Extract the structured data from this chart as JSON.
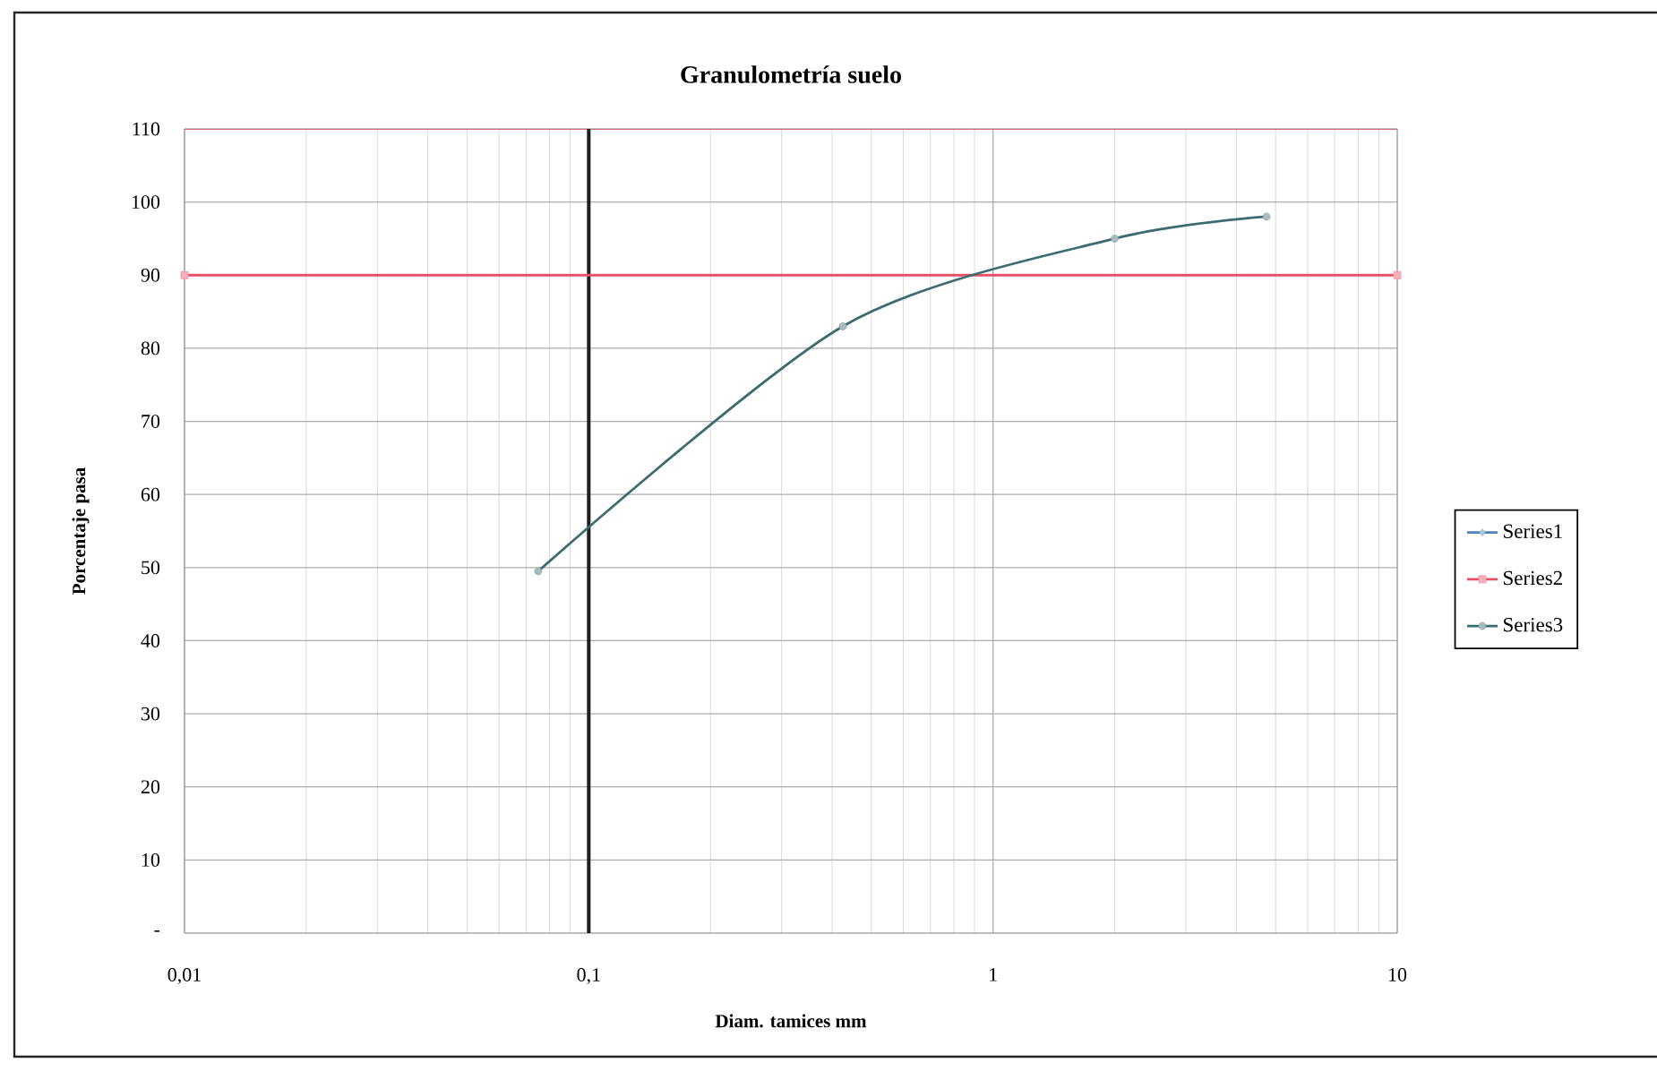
{
  "chart_data": {
    "type": "line",
    "title": "Granulometría suelo",
    "xlabel": "Diam. tamices mm",
    "ylabel": "Porcentaje pasa",
    "log": "x",
    "x": [
      0.075,
      0.425,
      2,
      4.75
    ],
    "series": [
      {
        "name": "Series1",
        "color": "#4f81bd",
        "marker": "diamond",
        "values": [
          null,
          null,
          null,
          null
        ]
      },
      {
        "name": "Series2",
        "color": "#e8506a",
        "marker": "square",
        "x": [
          0.01,
          10
        ],
        "values": [
          90,
          90
        ]
      },
      {
        "name": "Series3",
        "color": "#3d6b70",
        "marker": "circle",
        "values": [
          49.5,
          83,
          95,
          98
        ]
      }
    ],
    "xlim": [
      0.01,
      10
    ],
    "xticks": [
      {
        "value": 0.01,
        "label": "0,01"
      },
      {
        "value": 0.1,
        "label": "0,1"
      },
      1,
      10
    ],
    "ylim": [
      0,
      110
    ],
    "yticks": [
      {
        "value": 0,
        "label": "-"
      },
      10,
      20,
      30,
      40,
      50,
      60,
      70,
      80,
      90,
      100,
      110
    ],
    "ref_lines": [
      {
        "axis": "y",
        "value": 110,
        "color": "#e8506a"
      },
      {
        "axis": "x",
        "value": 0.1,
        "color": "#1e1e1e"
      }
    ],
    "grid": true,
    "legend": "right"
  }
}
